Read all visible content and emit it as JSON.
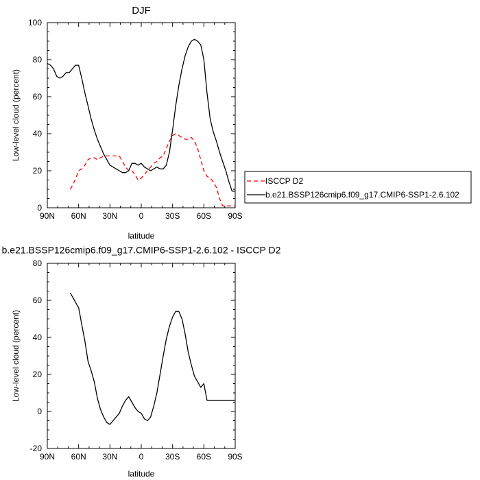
{
  "chart_data": [
    {
      "type": "line",
      "title": "DJF",
      "xlabel": "latitude",
      "ylabel": "Low-level cloud (percent)",
      "xlim": [
        90,
        -90
      ],
      "ylim": [
        0,
        100
      ],
      "x_ticks": [
        90,
        60,
        30,
        0,
        -30,
        -60,
        -90
      ],
      "x_tick_labels": [
        "90N",
        "60N",
        "30N",
        "0",
        "30S",
        "60S",
        "90S"
      ],
      "y_ticks": [
        0,
        20,
        40,
        60,
        80,
        100
      ],
      "y_tick_labels": [
        "0",
        "20",
        "40",
        "60",
        "80",
        "100"
      ],
      "legend": {
        "placement": "right",
        "entries": [
          "ISCCP D2",
          "b.e21.BSSP126cmip6.f09_g17.CMIP6-SSP1-2.6.102"
        ]
      },
      "series": [
        {
          "name": "ISCCP D2",
          "color": "#ff0000",
          "dash": "dashed",
          "x": [
            68,
            65,
            62,
            60,
            57,
            54,
            51,
            48,
            45,
            42,
            39,
            36,
            33,
            30,
            27,
            24,
            21,
            18,
            15,
            12,
            9,
            6,
            3,
            0,
            -3,
            -6,
            -9,
            -12,
            -15,
            -18,
            -21,
            -24,
            -27,
            -30,
            -33,
            -36,
            -39,
            -42,
            -45,
            -48,
            -51,
            -54,
            -57,
            -60,
            -63,
            -66,
            -69,
            -72,
            -75,
            -78,
            -81,
            -84,
            -87,
            -90
          ],
          "y": [
            10,
            13,
            17,
            20,
            21,
            23,
            26,
            27,
            27,
            26,
            27,
            28,
            28,
            28,
            28,
            28,
            28,
            25,
            22,
            20,
            20,
            18,
            15,
            16,
            18,
            20,
            22,
            24,
            25,
            27,
            28,
            32,
            36,
            39,
            40,
            39,
            38,
            37,
            37,
            38,
            36,
            32,
            26,
            20,
            17,
            16,
            14,
            11,
            5,
            1,
            1,
            1,
            1,
            1
          ]
        },
        {
          "name": "b.e21.BSSP126cmip6.f09_g17.CMIP6-SSP1-2.6.102",
          "color": "#000000",
          "dash": "solid",
          "x": [
            90,
            87,
            84,
            81,
            78,
            75,
            72,
            69,
            66,
            63,
            60,
            57,
            54,
            51,
            48,
            45,
            42,
            39,
            36,
            33,
            30,
            27,
            24,
            21,
            18,
            15,
            12,
            9,
            6,
            3,
            0,
            -3,
            -6,
            -9,
            -12,
            -15,
            -18,
            -21,
            -24,
            -27,
            -30,
            -33,
            -36,
            -39,
            -42,
            -45,
            -48,
            -51,
            -54,
            -57,
            -60,
            -63,
            -66,
            -69,
            -72,
            -75,
            -78,
            -81,
            -84,
            -87,
            -90
          ],
          "y": [
            78,
            77,
            75,
            71,
            70,
            71,
            73,
            73,
            75,
            77,
            77,
            70,
            62,
            55,
            48,
            42,
            37,
            33,
            29,
            26,
            23,
            22,
            21,
            20,
            19,
            19,
            20,
            24,
            24,
            23,
            24,
            22,
            21,
            20,
            21,
            22,
            21,
            21,
            23,
            30,
            42,
            55,
            66,
            75,
            82,
            87,
            90,
            91,
            90,
            88,
            80,
            62,
            48,
            41,
            36,
            30,
            25,
            20,
            14,
            9,
            9
          ]
        }
      ]
    },
    {
      "type": "line",
      "title": "b.e21.BSSP126cmip6.f09_g17.CMIP6-SSP1-2.6.102 - ISCCP D2",
      "xlabel": "latitude",
      "ylabel": "Low-level cloud (percent)",
      "xlim": [
        90,
        -90
      ],
      "ylim": [
        -20,
        80
      ],
      "x_ticks": [
        90,
        60,
        30,
        0,
        -30,
        -60,
        -90
      ],
      "x_tick_labels": [
        "90N",
        "60N",
        "30N",
        "0",
        "30S",
        "60S",
        "90S"
      ],
      "y_ticks": [
        -20,
        0,
        20,
        40,
        60,
        80
      ],
      "y_tick_labels": [
        "-20",
        "0",
        "20",
        "40",
        "60",
        "80"
      ],
      "series": [
        {
          "color": "#000000",
          "dash": "solid",
          "x": [
            68,
            65,
            62,
            60,
            57,
            54,
            51,
            48,
            45,
            42,
            39,
            36,
            33,
            30,
            27,
            24,
            21,
            18,
            15,
            12,
            9,
            6,
            3,
            0,
            -3,
            -6,
            -9,
            -12,
            -15,
            -18,
            -21,
            -24,
            -27,
            -30,
            -33,
            -36,
            -39,
            -42,
            -45,
            -48,
            -51,
            -54,
            -57,
            -60,
            -63,
            -66,
            -69,
            -72,
            -75,
            -78,
            -81,
            -84,
            -87,
            -90
          ],
          "y": [
            64,
            61,
            58,
            56,
            47,
            38,
            27,
            22,
            16,
            7,
            1,
            -3,
            -6,
            -7,
            -5,
            -3,
            -1,
            3,
            6,
            8,
            5,
            2,
            0,
            -1,
            -4,
            -5,
            -3,
            3,
            10,
            20,
            30,
            39,
            46,
            51,
            54,
            54,
            50,
            42,
            32,
            25,
            19,
            16,
            13,
            15,
            6,
            6,
            6,
            6,
            6,
            6,
            6,
            6,
            6,
            6
          ]
        }
      ]
    }
  ]
}
